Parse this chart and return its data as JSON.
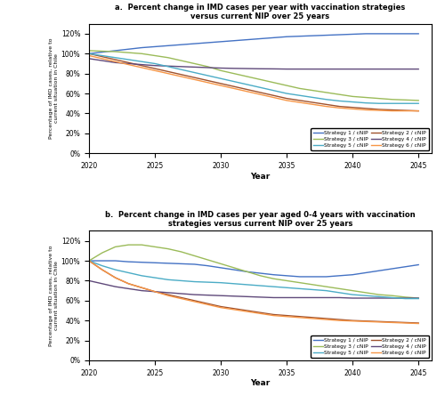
{
  "title_a": "a.  Percent change in IMD cases per year with vaccination strategies\nversus current NIP over 25 years",
  "title_b": "b.  Percent change in IMD cases per year aged 0-4 years with vaccination\nstrategies versus current NIP over 25 years",
  "ylabel": "Percentage of IMD cases, relative to\ncurrent situation in Chile",
  "xlabel": "Year",
  "years": [
    2020,
    2021,
    2022,
    2023,
    2024,
    2025,
    2026,
    2027,
    2028,
    2029,
    2030,
    2031,
    2032,
    2033,
    2034,
    2035,
    2036,
    2037,
    2038,
    2039,
    2040,
    2041,
    2042,
    2043,
    2044,
    2045
  ],
  "panel_a": {
    "strategy1": [
      100,
      101.5,
      103,
      104.5,
      106,
      107,
      108,
      109,
      110,
      111,
      112,
      113,
      114,
      115,
      116,
      117,
      117.5,
      118,
      118.5,
      119,
      119.5,
      120,
      120,
      120,
      120,
      120
    ],
    "strategy2": [
      100,
      97,
      94,
      91,
      88,
      85,
      82,
      79,
      76,
      73,
      70,
      67,
      64,
      61,
      58,
      55,
      53,
      51,
      49,
      47,
      46,
      45,
      44,
      43.5,
      43,
      42.5
    ],
    "strategy3": [
      103,
      102.5,
      102,
      101,
      100,
      98,
      96,
      93,
      90,
      87,
      83,
      80,
      77,
      74,
      71,
      68,
      65,
      63,
      61,
      59,
      57,
      56,
      55,
      54,
      53.5,
      53
    ],
    "strategy4": [
      95,
      93,
      91,
      90,
      89,
      88,
      87.5,
      87,
      86.5,
      86,
      85.5,
      85.2,
      85,
      84.8,
      84.7,
      84.5,
      84.5,
      84.5,
      84.5,
      84.5,
      84.5,
      84.5,
      84.5,
      84.5,
      84.5,
      84.5
    ],
    "strategy5": [
      100,
      98,
      96,
      94,
      92,
      90,
      87,
      84,
      81,
      78,
      75,
      72,
      69,
      66,
      63,
      60,
      58,
      56,
      54,
      52.5,
      51.5,
      50.5,
      50,
      50,
      50,
      50
    ],
    "strategy6": [
      98,
      95,
      92,
      89,
      86,
      83,
      80,
      77,
      74,
      71,
      68,
      65,
      62,
      59,
      56,
      53,
      51,
      49,
      47,
      45.5,
      44.5,
      43.5,
      43,
      42.5,
      42.5,
      42.5
    ]
  },
  "panel_b": {
    "strategy1": [
      100,
      100,
      100,
      99,
      98.5,
      98,
      97.5,
      97,
      96.5,
      95,
      93,
      91,
      89,
      87.5,
      86,
      85,
      84,
      84,
      84,
      85,
      86,
      88,
      90,
      92,
      94,
      96
    ],
    "strategy2": [
      100,
      91,
      83,
      77,
      73,
      69,
      66,
      63,
      60,
      57,
      54,
      52,
      50,
      48,
      46,
      45,
      44,
      43,
      42,
      41,
      40,
      39.5,
      39,
      38.5,
      38,
      37.5
    ],
    "strategy3": [
      100,
      108,
      114,
      116,
      116,
      114,
      112,
      109,
      105,
      101,
      97,
      93,
      89,
      85,
      82,
      80,
      78,
      76,
      74,
      72,
      70,
      68,
      66,
      65,
      63.5,
      62.5
    ],
    "strategy4": [
      80,
      77,
      74,
      72,
      70,
      69,
      68,
      67,
      66,
      65.5,
      65,
      64.5,
      64,
      63.5,
      63,
      63,
      63,
      63,
      63,
      63,
      62.5,
      62.5,
      62.5,
      62.5,
      62.5,
      62.5
    ],
    "strategy5": [
      100,
      95,
      91,
      88,
      85,
      83,
      81,
      80,
      79,
      78.5,
      78,
      77,
      76,
      75,
      74,
      73,
      72,
      71,
      70,
      68,
      66,
      65,
      64,
      63,
      62,
      62
    ],
    "strategy6": [
      100,
      91,
      83,
      77,
      73,
      69,
      65,
      62,
      59,
      56,
      53,
      51,
      49,
      47,
      45,
      44,
      43,
      42,
      41,
      40,
      39.5,
      39,
      38.5,
      38,
      37.5,
      37
    ]
  },
  "colors": {
    "strategy1": "#4472C4",
    "strategy2": "#A0522D",
    "strategy3": "#9BBB59",
    "strategy4": "#5F497A",
    "strategy5": "#4BACC6",
    "strategy6": "#F79646"
  },
  "legend_labels": [
    "Strategy 1 / cNIP",
    "Strategy 2 / cNIP",
    "Strategy 3 / cNIP",
    "Strategy 4 / cNIP",
    "Strategy 5 / cNIP",
    "Strategy 6 / cNIP"
  ],
  "ylim": [
    0,
    130
  ],
  "yticks": [
    0,
    20,
    40,
    60,
    80,
    100,
    120
  ],
  "xticks": [
    2020,
    2025,
    2030,
    2035,
    2040,
    2045
  ]
}
